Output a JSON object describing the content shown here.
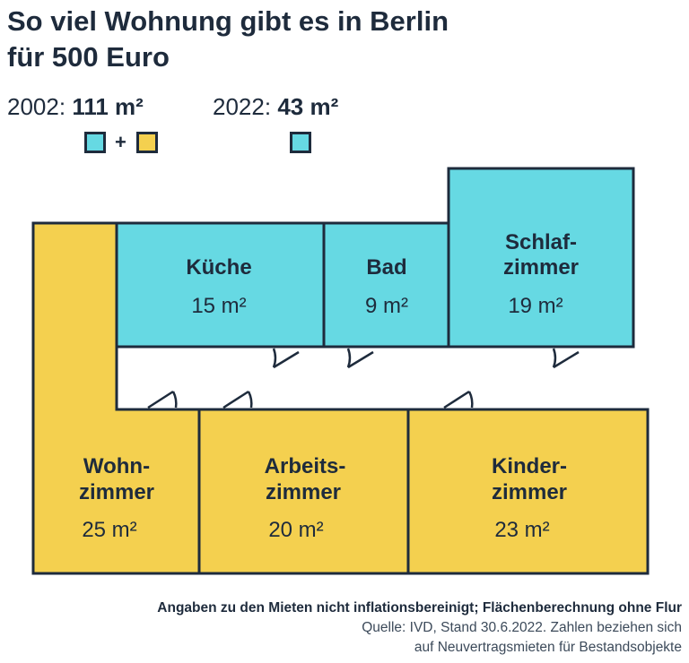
{
  "title_line1": "So viel Wohnung gibt es in Berlin",
  "title_line2": "für 500 Euro",
  "legend": {
    "y2002": {
      "year": "2002:",
      "area": "111 m²"
    },
    "y2022": {
      "year": "2022:",
      "area": "43 m²"
    },
    "plus": "+"
  },
  "colors": {
    "cyan": "#66d9e3",
    "yellow": "#f4d04f",
    "ink": "#1e2b3c"
  },
  "rooms": {
    "kueche": {
      "label": "Küche",
      "area": "15 m²"
    },
    "bad": {
      "label": "Bad",
      "area": "9 m²"
    },
    "schlaf": {
      "label1": "Schlaf-",
      "label2": "zimmer",
      "area": "19 m²"
    },
    "wohn": {
      "label1": "Wohn-",
      "label2": "zimmer",
      "area": "25 m²"
    },
    "arbeit": {
      "label1": "Arbeits-",
      "label2": "zimmer",
      "area": "20 m²"
    },
    "kinder": {
      "label1": "Kinder-",
      "label2": "zimmer",
      "area": "23 m²"
    }
  },
  "footer": {
    "note": "Angaben zu den Mieten nicht inflationsbereinigt; Flächenberechnung ohne Flur",
    "source1": "Quelle: IVD, Stand 30.6.2022. Zahlen beziehen sich",
    "source2": "auf Neuvertragsmieten für Bestandsobjekte"
  }
}
